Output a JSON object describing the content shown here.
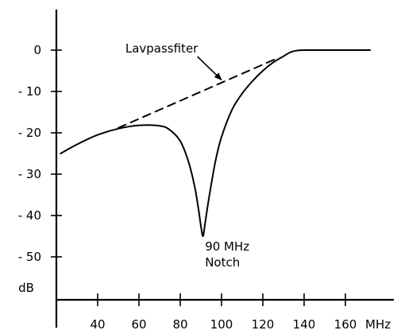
{
  "chart_data": {
    "type": "line",
    "title": "",
    "xlabel": "",
    "ylabel": "",
    "x_unit": "MHz",
    "y_unit": "dB",
    "xlim": [
      20,
      175
    ],
    "ylim": [
      -55,
      10
    ],
    "x_ticks": [
      40,
      60,
      80,
      100,
      120,
      140,
      160
    ],
    "y_ticks": [
      0,
      -10,
      -20,
      -30,
      -40,
      -50
    ],
    "x_tick_labels": [
      "40",
      "60",
      "80",
      "100",
      "120",
      "140",
      "160"
    ],
    "y_tick_labels": [
      "0",
      "- 10",
      "- 20",
      "- 30",
      "- 40",
      "- 50"
    ],
    "grid": false,
    "legend": "none",
    "series": [
      {
        "style": "solid",
        "color": "#000000",
        "x": [
          22,
          30,
          40,
          50,
          60,
          70,
          75,
          80,
          84,
          87,
          89,
          90,
          91,
          92,
          94,
          97,
          100,
          105,
          110,
          115,
          120,
          125,
          130,
          133,
          136,
          140,
          145,
          150,
          160,
          172
        ],
        "y": [
          -25,
          -22.8,
          -20.5,
          -19,
          -18.2,
          -18.3,
          -19.3,
          -22,
          -27,
          -33,
          -39,
          -42.5,
          -45,
          -42,
          -35.5,
          -27,
          -21,
          -14.5,
          -10.5,
          -7.5,
          -5,
          -3,
          -1.5,
          -0.6,
          -0.15,
          0,
          0,
          0,
          0,
          0
        ]
      },
      {
        "style": "dashed",
        "color": "#000000",
        "x": [
          50,
          126
        ],
        "y": [
          -18.8,
          -2.2
        ]
      }
    ],
    "annotations": [
      {
        "text": "Lavpassfiter",
        "x": 71,
        "y": -0.6,
        "arrow_to": [
          100,
          -7.2
        ]
      },
      {
        "lines": [
          "90 MHz",
          "Notch"
        ],
        "x": 92,
        "y": -48.5
      }
    ]
  }
}
